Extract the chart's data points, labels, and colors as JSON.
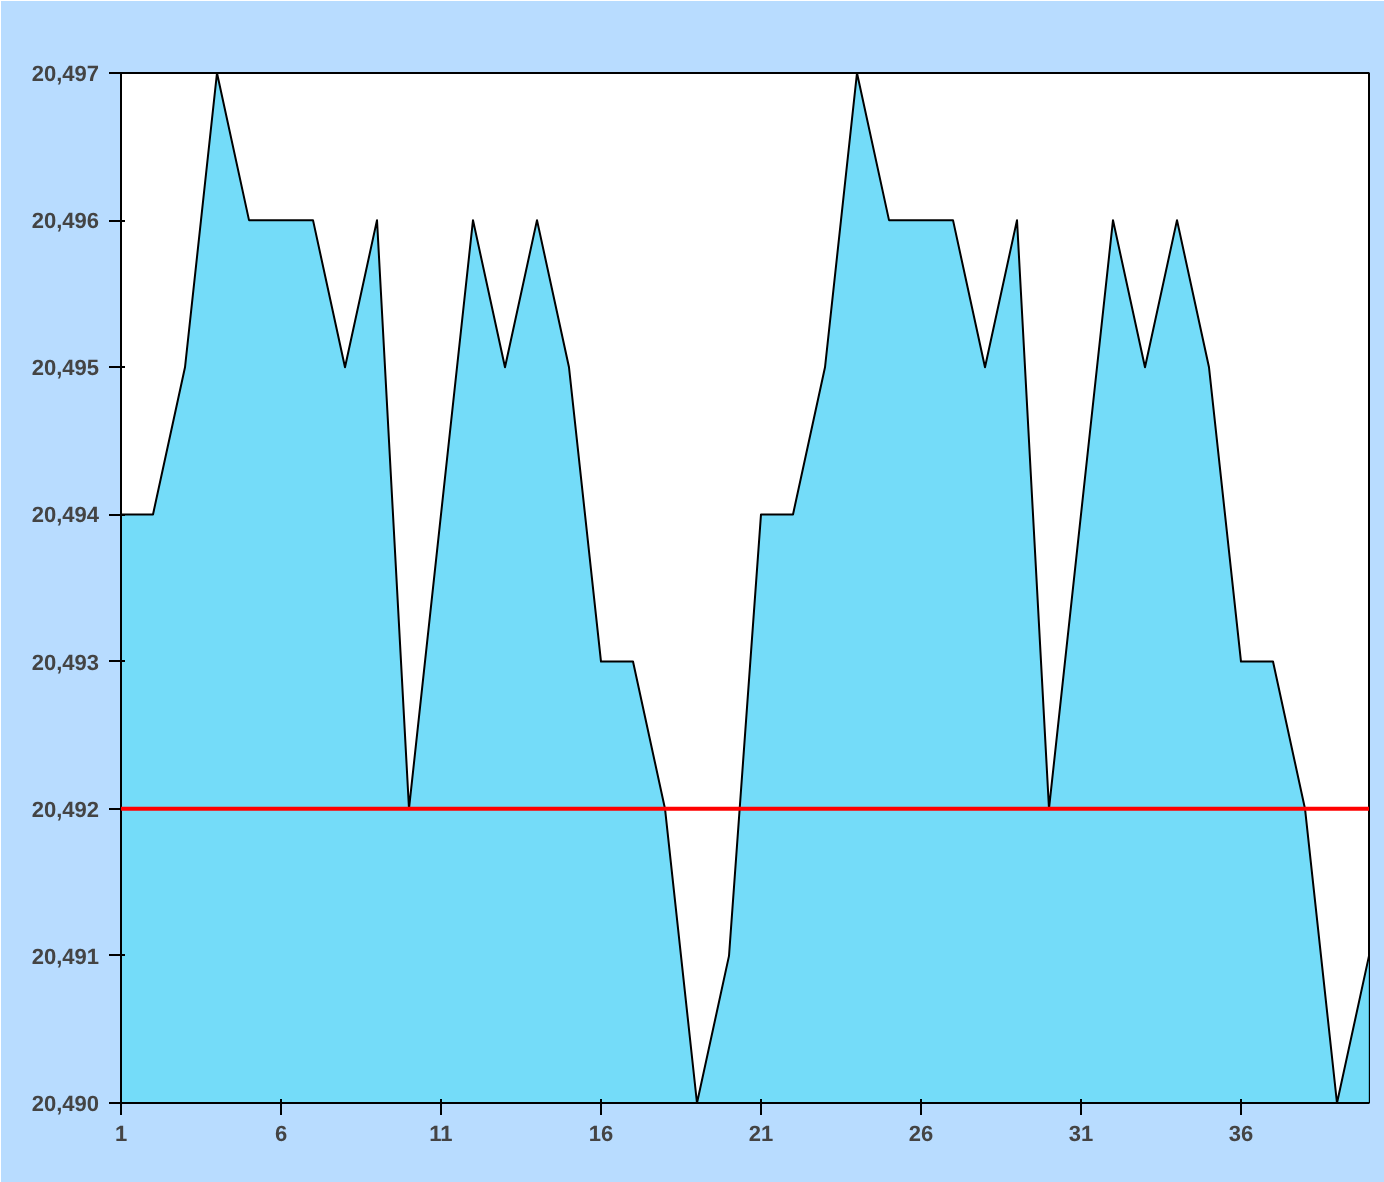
{
  "chart_data": {
    "type": "area",
    "x": [
      1,
      2,
      3,
      4,
      5,
      6,
      7,
      8,
      9,
      10,
      11,
      12,
      13,
      14,
      15,
      16,
      17,
      18,
      19,
      20,
      21,
      22,
      23,
      24,
      25,
      26,
      27,
      28,
      29,
      30,
      31,
      32,
      33,
      34,
      35,
      36,
      37,
      38,
      39,
      40
    ],
    "series": [
      {
        "color": "#5cd6f8",
        "values": [
          20494,
          20494,
          20495,
          20497,
          20496,
          20496,
          20496,
          20495,
          20496,
          20492,
          20494,
          20496,
          20495,
          20496,
          20495,
          20493,
          20493,
          20492,
          20490,
          20491,
          20494,
          20494,
          20495,
          20497,
          20496,
          20496,
          20496,
          20495,
          20496,
          20492,
          20494,
          20496,
          20495,
          20496,
          20495,
          20493,
          20493,
          20492,
          20490,
          20491
        ]
      }
    ],
    "xlim": [
      1,
      40
    ],
    "ylim": [
      20490,
      20497
    ],
    "xticks": [
      1,
      6,
      11,
      16,
      21,
      26,
      31,
      36
    ],
    "yticks": [
      {
        "value": 20490,
        "label": "20,490"
      },
      {
        "value": 20491,
        "label": "20,491"
      },
      {
        "value": 20492,
        "label": "20,492"
      },
      {
        "value": 20493,
        "label": "20,493"
      },
      {
        "value": 20494,
        "label": "20,494"
      },
      {
        "value": 20495,
        "label": "20,495"
      },
      {
        "value": 20496,
        "label": "20,496"
      },
      {
        "value": 20497,
        "label": "20,497"
      }
    ],
    "ref_lines": [
      {
        "axis": "y",
        "value": 20492,
        "color": "#ff0000"
      }
    ],
    "grid": false,
    "marker": "none"
  }
}
